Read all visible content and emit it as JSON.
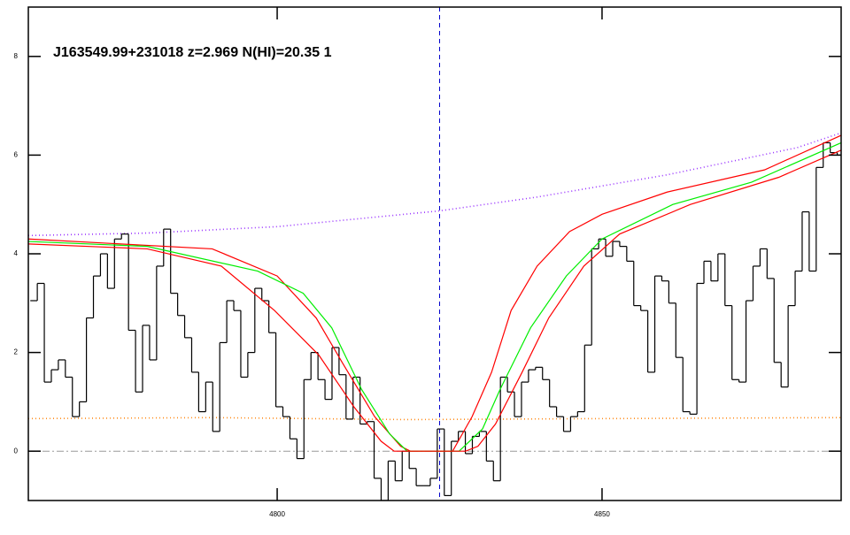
{
  "chart_data": {
    "type": "line",
    "title": "J163549.99+231018 z=2.969 N(HI)=20.35 1",
    "xlim": [
      4761.7,
      4886.8
    ],
    "ylim": [
      -1,
      9
    ],
    "xticks": [
      4800,
      4850
    ],
    "yticks": [
      0,
      2,
      4,
      6,
      8
    ],
    "vline": {
      "value": 4825,
      "color": "#0000cc"
    },
    "hline": {
      "value": 0,
      "color": "#999999"
    },
    "series": [
      {
        "color": "#9933ff",
        "style": "dotted",
        "x": [
          4761.7,
          4780,
          4800,
          4825,
          4840,
          4860,
          4880,
          4886.8
        ],
        "values": [
          4.37,
          4.42,
          4.55,
          4.87,
          5.15,
          5.6,
          6.15,
          6.45
        ]
      },
      {
        "color": "#ff8c1a",
        "style": "dotted",
        "x": [
          4761.7,
          4790,
          4820,
          4850,
          4886.8
        ],
        "values": [
          0.66,
          0.68,
          0.64,
          0.66,
          0.68
        ]
      },
      {
        "color": "#000000",
        "style": "steps",
        "x": [
          4762.0,
          4763.08,
          4764.16,
          4765.24,
          4766.32,
          4767.4,
          4768.48,
          4769.56,
          4770.64,
          4771.72,
          4772.8,
          4773.88,
          4774.96,
          4776.04,
          4777.12,
          4778.2,
          4779.28,
          4780.36,
          4781.44,
          4782.52,
          4783.6,
          4784.68,
          4785.76,
          4786.84,
          4787.92,
          4789.0,
          4790.08,
          4791.16,
          4792.24,
          4793.32,
          4794.4,
          4795.48,
          4796.56,
          4797.64,
          4798.72,
          4799.8,
          4800.88,
          4801.96,
          4803.04,
          4804.12,
          4805.2,
          4806.28,
          4807.36,
          4808.44,
          4809.52,
          4810.6,
          4811.68,
          4812.76,
          4813.84,
          4814.92,
          4816.0,
          4817.08,
          4818.16,
          4819.24,
          4820.32,
          4821.4,
          4822.48,
          4823.56,
          4824.64,
          4825.72,
          4826.8,
          4827.88,
          4828.96,
          4830.04,
          4831.12,
          4832.2,
          4833.28,
          4834.36,
          4835.44,
          4836.52,
          4837.6,
          4838.68,
          4839.76,
          4840.84,
          4841.92,
          4843.0,
          4844.08,
          4845.16,
          4846.24,
          4847.32,
          4848.4,
          4849.48,
          4850.56,
          4851.64,
          4852.72,
          4853.8,
          4854.88,
          4855.96,
          4857.04,
          4858.12,
          4859.2,
          4860.28,
          4861.36,
          4862.44,
          4863.52,
          4864.6,
          4865.68,
          4866.76,
          4867.84,
          4868.92,
          4870.0,
          4871.08,
          4872.16,
          4873.24,
          4874.32,
          4875.4,
          4876.48,
          4877.56,
          4878.64,
          4879.72,
          4880.8,
          4881.88,
          4882.96,
          4884.04,
          4885.12,
          4886.2
        ],
        "values": [
          3.05,
          3.4,
          1.4,
          1.65,
          1.85,
          1.5,
          0.7,
          1.0,
          2.7,
          3.55,
          4.0,
          3.3,
          4.3,
          4.4,
          2.45,
          1.2,
          2.55,
          1.85,
          3.75,
          4.5,
          3.2,
          2.75,
          2.3,
          1.6,
          0.8,
          1.4,
          0.4,
          2.2,
          3.05,
          2.85,
          1.5,
          2.0,
          3.3,
          3.05,
          2.4,
          0.9,
          0.7,
          0.25,
          -0.15,
          1.45,
          2.0,
          1.45,
          1.05,
          2.1,
          1.55,
          0.65,
          1.5,
          0.55,
          0.6,
          -0.55,
          -1.0,
          -0.2,
          -0.6,
          0,
          -0.35,
          -0.7,
          -0.7,
          -0.55,
          0.45,
          -0.9,
          0.2,
          0.4,
          -0.05,
          0.3,
          0.4,
          -0.2,
          -0.6,
          1.5,
          1.2,
          0.7,
          1.4,
          1.65,
          1.7,
          1.45,
          0.9,
          0.7,
          0.4,
          0.7,
          0.8,
          2.15,
          4.1,
          4.3,
          3.95,
          4.25,
          4.15,
          3.85,
          2.95,
          2.85,
          1.6,
          3.55,
          3.45,
          3.0,
          1.9,
          0.8,
          0.75,
          3.4,
          3.85,
          3.45,
          4.0,
          2.95,
          1.45,
          1.4,
          3.05,
          3.75,
          4.1,
          3.5,
          1.8,
          1.3,
          2.95,
          3.65,
          4.85,
          3.65,
          5.75,
          6.25,
          6.05,
          6.0
        ]
      },
      {
        "color": "#ff0000",
        "style": "solid",
        "x": [
          4761.7,
          4790,
          4800,
          4806,
          4810,
          4815,
          4819,
          4820.5,
          4827,
          4830,
          4833,
          4836,
          4840,
          4845,
          4850,
          4860,
          4875,
          4886.8
        ],
        "values": [
          4.3,
          4.1,
          3.55,
          2.7,
          1.8,
          0.7,
          0.1,
          0,
          0,
          0.7,
          1.6,
          2.85,
          3.75,
          4.45,
          4.8,
          5.25,
          5.7,
          6.4
        ]
      },
      {
        "color": "#00ee00",
        "style": "solid",
        "x": [
          4761.7,
          4780,
          4797,
          4804,
          4808.4,
          4813,
          4817.3,
          4820,
          4828,
          4831.6,
          4834.3,
          4839,
          4844.5,
          4850,
          4860.9,
          4873,
          4886.8
        ],
        "values": [
          4.25,
          4.15,
          3.65,
          3.2,
          2.5,
          1.25,
          0.35,
          0,
          0,
          0.45,
          1.25,
          2.5,
          3.55,
          4.3,
          5.0,
          5.45,
          6.25
        ]
      },
      {
        "color": "#ff0000",
        "style": "solid",
        "x": [
          4761.7,
          4780,
          4791.4,
          4799.6,
          4806.4,
          4811.8,
          4816,
          4818,
          4829,
          4830.9,
          4833.6,
          4837.7,
          4841.8,
          4847.2,
          4852.7,
          4863.6,
          4877.2,
          4886.8
        ],
        "values": [
          4.2,
          4.1,
          3.75,
          2.85,
          1.95,
          0.9,
          0.2,
          0,
          0,
          0.1,
          0.55,
          1.6,
          2.7,
          3.75,
          4.4,
          5.0,
          5.55,
          6.1
        ]
      }
    ]
  }
}
